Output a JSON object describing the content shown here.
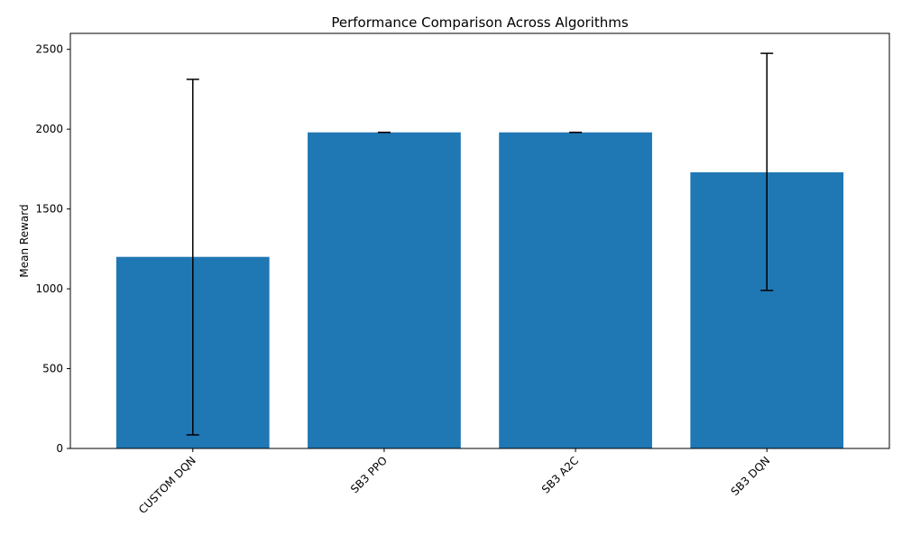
{
  "chart_data": {
    "type": "bar",
    "title": "Performance Comparison Across Algorithms",
    "xlabel": "",
    "ylabel": "Mean Reward",
    "categories": [
      "CUSTOM DQN",
      "SB3 PPO",
      "SB3 A2C",
      "SB3 DQN"
    ],
    "values": [
      1200,
      1980,
      1980,
      1730
    ],
    "error_low": [
      85,
      1980,
      1980,
      990
    ],
    "error_high": [
      2312,
      1980,
      1980,
      2475
    ],
    "ylim": [
      0,
      2600
    ],
    "yticks": [
      0,
      500,
      1000,
      1500,
      2000,
      2500
    ],
    "x_tick_rotation": 45,
    "grid": false,
    "legend": "none",
    "bar_color": "#1f77b4",
    "error_bar_color": "#000000"
  }
}
